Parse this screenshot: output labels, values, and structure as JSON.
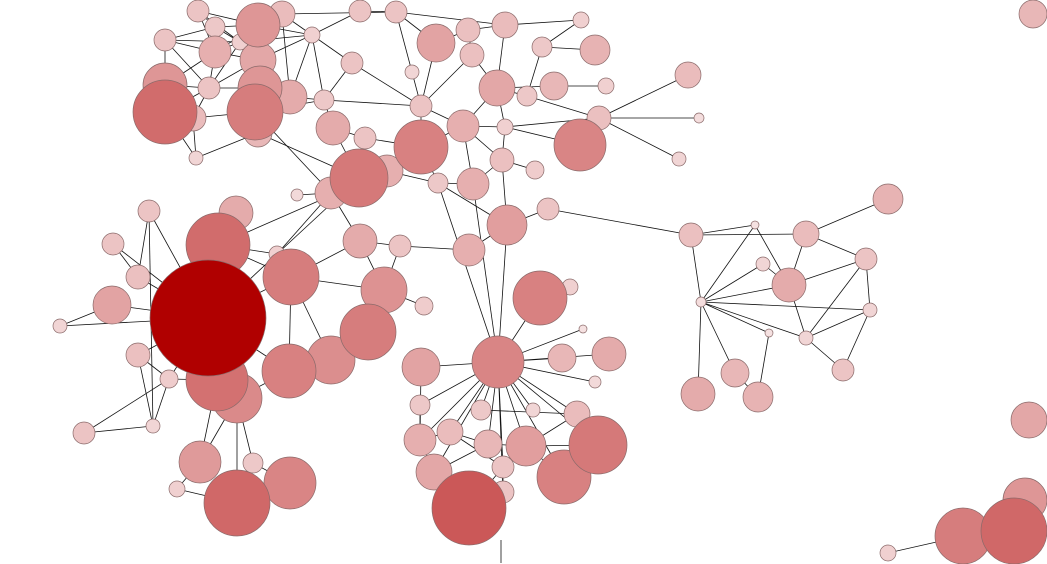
{
  "graph": {
    "type": "network",
    "node_color_scale": {
      "low": "#f5e1e1",
      "high": "#b00000"
    },
    "edge_color": "#111111",
    "nodes": [
      {
        "id": 1,
        "w": 32
      },
      {
        "id": 2,
        "w": 28
      },
      {
        "id": 3,
        "w": 22
      },
      {
        "id": 4,
        "w": 16
      },
      {
        "id": 5,
        "w": 18
      },
      {
        "id": 6,
        "w": 22
      },
      {
        "id": 7,
        "w": 17
      },
      {
        "id": 8,
        "w": 13
      },
      {
        "id": 9,
        "w": 14
      },
      {
        "id": 10,
        "w": 11
      },
      {
        "id": 11,
        "w": 11
      },
      {
        "id": 12,
        "w": 8
      },
      {
        "id": 13,
        "w": 13
      },
      {
        "id": 14,
        "w": 11
      },
      {
        "id": 15,
        "w": 10
      },
      {
        "id": 16,
        "w": 8
      },
      {
        "id": 17,
        "w": 10
      },
      {
        "id": 18,
        "w": 7
      },
      {
        "id": 19,
        "w": 22
      },
      {
        "id": 20,
        "w": 11
      },
      {
        "id": 21,
        "w": 11
      },
      {
        "id": 22,
        "w": 19
      },
      {
        "id": 23,
        "w": 12
      },
      {
        "id": 24,
        "w": 13
      },
      {
        "id": 25,
        "w": 12
      },
      {
        "id": 26,
        "w": 11
      },
      {
        "id": 27,
        "w": 7
      },
      {
        "id": 28,
        "w": 18
      },
      {
        "id": 29,
        "w": 10
      },
      {
        "id": 30,
        "w": 14
      },
      {
        "id": 31,
        "w": 10
      },
      {
        "id": 32,
        "w": 15
      },
      {
        "id": 33,
        "w": 8
      },
      {
        "id": 34,
        "w": 8
      },
      {
        "id": 35,
        "w": 11
      },
      {
        "id": 36,
        "w": 16
      },
      {
        "id": 37,
        "w": 27
      },
      {
        "id": 38,
        "w": 17
      },
      {
        "id": 39,
        "w": 11
      },
      {
        "id": 40,
        "w": 29
      },
      {
        "id": 41,
        "w": 16
      },
      {
        "id": 42,
        "w": 16
      },
      {
        "id": 43,
        "w": 6
      },
      {
        "id": 44,
        "w": 10
      },
      {
        "id": 45,
        "w": 16
      },
      {
        "id": 46,
        "w": 12
      },
      {
        "id": 47,
        "w": 9
      },
      {
        "id": 48,
        "w": 8
      },
      {
        "id": 49,
        "w": 26
      },
      {
        "id": 50,
        "w": 12
      },
      {
        "id": 51,
        "w": 13
      },
      {
        "id": 52,
        "w": 5
      },
      {
        "id": 53,
        "w": 7
      },
      {
        "id": 54,
        "w": 58
      },
      {
        "id": 55,
        "w": 32
      },
      {
        "id": 56,
        "w": 17
      },
      {
        "id": 57,
        "w": 28
      },
      {
        "id": 58,
        "w": 11
      },
      {
        "id": 59,
        "w": 11
      },
      {
        "id": 60,
        "w": 12
      },
      {
        "id": 61,
        "w": 19
      },
      {
        "id": 62,
        "w": 7
      },
      {
        "id": 63,
        "w": 12
      },
      {
        "id": 64,
        "w": 9
      },
      {
        "id": 65,
        "w": 31
      },
      {
        "id": 66,
        "w": 25
      },
      {
        "id": 67,
        "w": 27
      },
      {
        "id": 68,
        "w": 24
      },
      {
        "id": 69,
        "w": 28
      },
      {
        "id": 70,
        "w": 23
      },
      {
        "id": 71,
        "w": 17
      },
      {
        "id": 72,
        "w": 11
      },
      {
        "id": 73,
        "w": 9
      },
      {
        "id": 74,
        "w": 8
      },
      {
        "id": 75,
        "w": 11
      },
      {
        "id": 76,
        "w": 7
      },
      {
        "id": 77,
        "w": 21
      },
      {
        "id": 78,
        "w": 10
      },
      {
        "id": 79,
        "w": 33
      },
      {
        "id": 80,
        "w": 26
      },
      {
        "id": 81,
        "w": 8
      },
      {
        "id": 82,
        "w": 16
      },
      {
        "id": 83,
        "w": 20
      },
      {
        "id": 84,
        "w": 11
      },
      {
        "id": 85,
        "w": 27
      },
      {
        "id": 86,
        "w": 8
      },
      {
        "id": 87,
        "w": 4
      },
      {
        "id": 88,
        "w": 26
      },
      {
        "id": 89,
        "w": 19
      },
      {
        "id": 90,
        "w": 10
      },
      {
        "id": 91,
        "w": 10
      },
      {
        "id": 92,
        "w": 14
      },
      {
        "id": 93,
        "w": 17
      },
      {
        "id": 94,
        "w": 6
      },
      {
        "id": 95,
        "w": 7
      },
      {
        "id": 96,
        "w": 13
      },
      {
        "id": 97,
        "w": 16
      },
      {
        "id": 98,
        "w": 13
      },
      {
        "id": 99,
        "w": 14
      },
      {
        "id": 100,
        "w": 20
      },
      {
        "id": 101,
        "w": 29
      },
      {
        "id": 102,
        "w": 27
      },
      {
        "id": 103,
        "w": 18
      },
      {
        "id": 104,
        "w": 11
      },
      {
        "id": 105,
        "w": 11
      },
      {
        "id": 106,
        "w": 37
      },
      {
        "id": 107,
        "w": 12
      },
      {
        "id": 108,
        "w": 4
      },
      {
        "id": 109,
        "w": 7
      },
      {
        "id": 110,
        "w": 5
      },
      {
        "id": 111,
        "w": 17
      },
      {
        "id": 112,
        "w": 13
      },
      {
        "id": 113,
        "w": 15
      },
      {
        "id": 114,
        "w": 11
      },
      {
        "id": 115,
        "w": 7
      },
      {
        "id": 116,
        "w": 4
      },
      {
        "id": 117,
        "w": 7
      },
      {
        "id": 118,
        "w": 11
      },
      {
        "id": 119,
        "w": 14
      },
      {
        "id": 120,
        "w": 15
      },
      {
        "id": 121,
        "w": 17
      },
      {
        "id": 122,
        "w": 14
      },
      {
        "id": 123,
        "w": 18
      },
      {
        "id": 124,
        "w": 22
      },
      {
        "id": 125,
        "w": 8
      },
      {
        "id": 126,
        "w": 28
      },
      {
        "id": 127,
        "w": 33
      }
    ],
    "edges": [
      [
        10,
        4
      ],
      [
        10,
        15
      ],
      [
        10,
        11
      ],
      [
        10,
        19
      ],
      [
        10,
        12
      ],
      [
        4,
        15
      ],
      [
        4,
        11
      ],
      [
        4,
        12
      ],
      [
        4,
        5
      ],
      [
        4,
        3
      ],
      [
        4,
        19
      ],
      [
        4,
        14
      ],
      [
        15,
        14
      ],
      [
        15,
        3
      ],
      [
        15,
        12
      ],
      [
        3,
        13
      ],
      [
        3,
        5
      ],
      [
        3,
        16
      ],
      [
        3,
        12
      ],
      [
        5,
        6
      ],
      [
        5,
        16
      ],
      [
        5,
        7
      ],
      [
        5,
        12
      ],
      [
        5,
        11
      ],
      [
        6,
        2
      ],
      [
        6,
        7
      ],
      [
        6,
        11
      ],
      [
        6,
        9
      ],
      [
        11,
        19
      ],
      [
        11,
        1
      ],
      [
        11,
        8
      ],
      [
        11,
        12
      ],
      [
        19,
        1
      ],
      [
        1,
        8
      ],
      [
        8,
        18
      ],
      [
        2,
        9
      ],
      [
        2,
        7
      ],
      [
        2,
        17
      ],
      [
        7,
        16
      ],
      [
        7,
        17
      ],
      [
        13,
        16
      ],
      [
        14,
        3
      ],
      [
        16,
        26
      ],
      [
        16,
        20
      ],
      [
        16,
        17
      ],
      [
        17,
        38
      ],
      [
        17,
        35
      ],
      [
        13,
        21
      ],
      [
        9,
        40
      ],
      [
        2,
        42
      ],
      [
        18,
        9
      ],
      [
        1,
        18
      ],
      [
        8,
        2
      ],
      [
        12,
        6
      ],
      [
        14,
        12
      ],
      [
        19,
        8
      ],
      [
        12,
        16
      ],
      [
        7,
        13
      ],
      [
        20,
        21
      ],
      [
        21,
        24
      ],
      [
        21,
        22
      ],
      [
        22,
        23
      ],
      [
        23,
        24
      ],
      [
        23,
        25
      ],
      [
        24,
        28
      ],
      [
        25,
        28
      ],
      [
        22,
        35
      ],
      [
        25,
        35
      ],
      [
        26,
        35
      ],
      [
        27,
        35
      ],
      [
        35,
        36
      ],
      [
        35,
        37
      ],
      [
        36,
        28
      ],
      [
        36,
        48
      ],
      [
        28,
        29
      ],
      [
        28,
        30
      ],
      [
        29,
        31
      ],
      [
        31,
        32
      ],
      [
        31,
        33
      ],
      [
        30,
        34
      ],
      [
        36,
        46
      ],
      [
        46,
        47
      ],
      [
        46,
        45
      ],
      [
        45,
        36
      ],
      [
        37,
        40
      ],
      [
        37,
        39
      ],
      [
        37,
        41
      ],
      [
        37,
        44
      ],
      [
        38,
        39
      ],
      [
        38,
        40
      ],
      [
        39,
        40
      ],
      [
        40,
        42
      ],
      [
        40,
        41
      ],
      [
        41,
        44
      ],
      [
        42,
        43
      ],
      [
        42,
        71
      ],
      [
        44,
        83
      ],
      [
        44,
        45
      ],
      [
        36,
        37
      ],
      [
        48,
        50
      ],
      [
        50,
        51
      ],
      [
        50,
        52
      ],
      [
        50,
        53
      ],
      [
        48,
        49
      ],
      [
        28,
        48
      ],
      [
        24,
        33
      ],
      [
        26,
        17
      ],
      [
        27,
        21
      ],
      [
        29,
        50
      ],
      [
        46,
        48
      ],
      [
        54,
        55
      ],
      [
        54,
        56
      ],
      [
        54,
        57
      ],
      [
        54,
        58
      ],
      [
        54,
        59
      ],
      [
        54,
        60
      ],
      [
        54,
        61
      ],
      [
        54,
        62
      ],
      [
        54,
        63
      ],
      [
        54,
        64
      ],
      [
        54,
        65
      ],
      [
        54,
        66
      ],
      [
        54,
        67
      ],
      [
        54,
        74
      ],
      [
        55,
        57
      ],
      [
        55,
        74
      ],
      [
        57,
        71
      ],
      [
        57,
        70
      ],
      [
        57,
        67
      ],
      [
        57,
        68
      ],
      [
        67,
        68
      ],
      [
        68,
        69
      ],
      [
        69,
        70
      ],
      [
        70,
        71
      ],
      [
        70,
        72
      ],
      [
        71,
        72
      ],
      [
        72,
        82
      ],
      [
        73,
        70
      ],
      [
        74,
        42
      ],
      [
        74,
        40
      ],
      [
        58,
        60
      ],
      [
        59,
        60
      ],
      [
        61,
        62
      ],
      [
        63,
        64
      ],
      [
        64,
        76
      ],
      [
        64,
        75
      ],
      [
        75,
        76
      ],
      [
        63,
        76
      ],
      [
        58,
        76
      ],
      [
        65,
        66
      ],
      [
        65,
        77
      ],
      [
        66,
        77
      ],
      [
        66,
        78
      ],
      [
        66,
        79
      ],
      [
        79,
        81
      ],
      [
        79,
        80
      ],
      [
        78,
        80
      ],
      [
        77,
        81
      ],
      [
        65,
        64
      ],
      [
        55,
        41
      ],
      [
        67,
        66
      ],
      [
        82,
        83
      ],
      [
        83,
        84
      ],
      [
        84,
        107
      ],
      [
        83,
        46
      ],
      [
        83,
        88
      ],
      [
        85,
        88
      ],
      [
        85,
        86
      ],
      [
        87,
        88
      ],
      [
        88,
        89
      ],
      [
        88,
        90
      ],
      [
        88,
        91
      ],
      [
        88,
        92
      ],
      [
        88,
        93
      ],
      [
        88,
        94
      ],
      [
        88,
        95
      ],
      [
        88,
        96
      ],
      [
        88,
        97
      ],
      [
        88,
        98
      ],
      [
        88,
        99
      ],
      [
        88,
        100
      ],
      [
        88,
        101
      ],
      [
        88,
        102
      ],
      [
        88,
        103
      ],
      [
        88,
        104
      ],
      [
        88,
        105
      ],
      [
        89,
        97
      ],
      [
        90,
        97
      ],
      [
        97,
        98
      ],
      [
        98,
        99
      ],
      [
        99,
        100
      ],
      [
        100,
        101
      ],
      [
        101,
        102
      ],
      [
        102,
        100
      ],
      [
        103,
        105
      ],
      [
        104,
        105
      ],
      [
        103,
        99
      ],
      [
        105,
        106
      ],
      [
        106,
        104
      ],
      [
        97,
        103
      ],
      [
        98,
        104
      ],
      [
        106,
        103
      ],
      [
        45,
        88
      ],
      [
        44,
        88
      ],
      [
        91,
        96
      ],
      [
        100,
        96
      ],
      [
        101,
        96
      ],
      [
        107,
        108
      ],
      [
        107,
        110
      ],
      [
        107,
        112
      ],
      [
        108,
        110
      ],
      [
        108,
        111
      ],
      [
        109,
        110
      ],
      [
        110,
        111
      ],
      [
        110,
        116
      ],
      [
        110,
        117
      ],
      [
        110,
        115
      ],
      [
        110,
        119
      ],
      [
        110,
        121
      ],
      [
        111,
        112
      ],
      [
        111,
        114
      ],
      [
        111,
        117
      ],
      [
        112,
        113
      ],
      [
        112,
        114
      ],
      [
        114,
        115
      ],
      [
        114,
        117
      ],
      [
        115,
        117
      ],
      [
        117,
        118
      ],
      [
        116,
        120
      ],
      [
        119,
        120
      ],
      [
        111,
        109
      ],
      [
        115,
        118
      ],
      [
        125,
        126
      ]
    ]
  }
}
